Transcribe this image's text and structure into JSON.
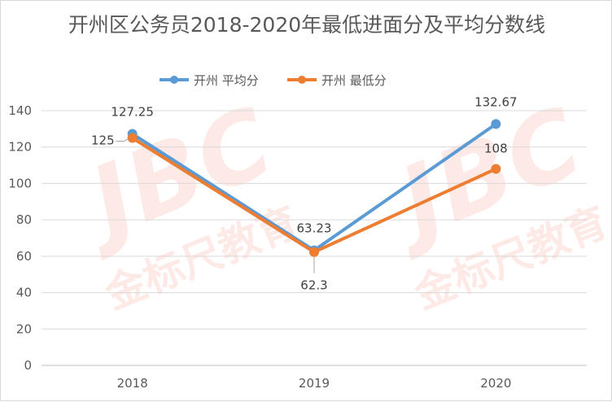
{
  "chart_data": {
    "type": "line",
    "title": "开州区公务员2018-2020年最低进面分及平均分数线",
    "categories": [
      "2018",
      "2019",
      "2020"
    ],
    "series": [
      {
        "name": "开州 平均分",
        "values": [
          127.25,
          63.23,
          132.67
        ],
        "labels": [
          "127.25",
          "63.23",
          "132.67"
        ],
        "color": "#5b9bd5"
      },
      {
        "name": "开州 最低分",
        "values": [
          125,
          62.3,
          108
        ],
        "labels": [
          "125",
          "62.3",
          "108"
        ],
        "color": "#ed7d31"
      }
    ],
    "ylim": [
      0,
      140
    ],
    "yticks": [
      "0",
      "20",
      "40",
      "60",
      "80",
      "100",
      "120",
      "140"
    ],
    "grid": true,
    "legend_position": "top-center"
  },
  "watermark": {
    "text_large": "JBC",
    "text_small": "金标尺教育",
    "color": "#f07864"
  }
}
